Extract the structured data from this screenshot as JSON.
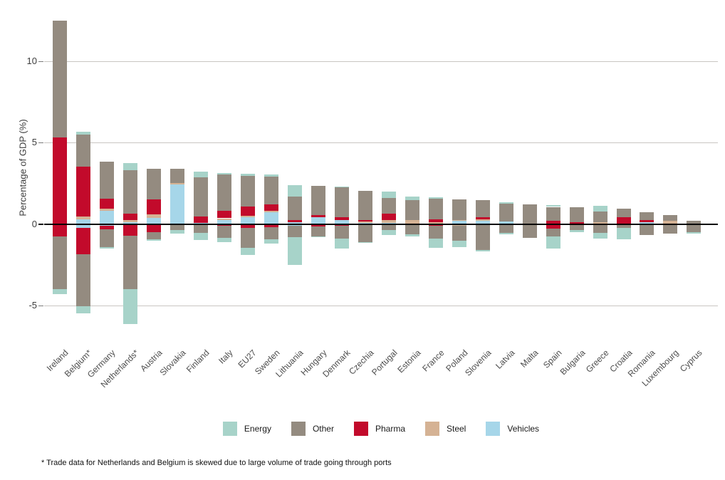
{
  "page": {
    "background": "#ffffff"
  },
  "chart_data": {
    "type": "bar",
    "stacked": true,
    "orientation": "vertical",
    "title": "",
    "xlabel": "",
    "ylabel": "Percentage of GDP (%)",
    "yticks": [
      10,
      5,
      0,
      -5
    ],
    "ylim": [
      -6.6,
      12.6
    ],
    "grid": "horizontal",
    "zero_line": true,
    "legend_position": "bottom",
    "negative_values_are_magnitudes": true,
    "stack_order_from_baseline": [
      "Vehicles",
      "Steel",
      "Pharma",
      "Other",
      "Energy"
    ],
    "categories": [
      "Ireland",
      "Belgium*",
      "Germany",
      "Netherlands*",
      "Austria",
      "Slovakia",
      "Finland",
      "Italy",
      "EU27",
      "Sweden",
      "Lithuania",
      "Hungary",
      "Denmark",
      "Czechia",
      "Portugal",
      "Estonia",
      "France",
      "Poland",
      "Slovenia",
      "Latvia",
      "Malta",
      "Spain",
      "Bulgaria",
      "Greece",
      "Croatia",
      "Romania",
      "Luxembourg",
      "Cyprus"
    ],
    "series": [
      {
        "name": "Energy",
        "color": "#a7d3c9",
        "positive": [
          0,
          0.19,
          0,
          0.44,
          0,
          0,
          0.32,
          0.07,
          0.13,
          0.12,
          0.69,
          0,
          0.05,
          0,
          0.4,
          0.22,
          0.1,
          0,
          0,
          0.09,
          0,
          0.12,
          0,
          0.35,
          0,
          0,
          0,
          0
        ],
        "negative": [
          0.34,
          0.44,
          0.1,
          2.16,
          0.06,
          0.19,
          0.44,
          0.26,
          0.44,
          0.29,
          1.69,
          0.07,
          0.61,
          0.05,
          0.32,
          0.11,
          0.58,
          0.39,
          0.1,
          0.11,
          0,
          0.73,
          0.11,
          0.34,
          0.69,
          0,
          0,
          0.08
        ]
      },
      {
        "name": "Other",
        "color": "#948b80",
        "positive": [
          7.2,
          1.96,
          2.26,
          2.7,
          1.89,
          0.91,
          2.44,
          2.22,
          1.88,
          1.74,
          1.48,
          1.8,
          1.84,
          1.77,
          0.96,
          1.25,
          1.27,
          1.23,
          1.04,
          1.11,
          1.22,
          0.85,
          0.91,
          0.66,
          0.54,
          0.5,
          0.35,
          0.21
        ],
        "negative": [
          3.23,
          3.22,
          1.07,
          3.27,
          0.44,
          0.39,
          0.55,
          0.75,
          1.19,
          0.71,
          0.7,
          0.59,
          0.79,
          1.11,
          0.38,
          0.65,
          0.81,
          0.9,
          1.6,
          0.54,
          0.85,
          0.49,
          0.39,
          0.55,
          0.26,
          0.66,
          0.55,
          0.5
        ]
      },
      {
        "name": "Pharma",
        "color": "#c20a2b",
        "positive": [
          5.3,
          3.08,
          0.65,
          0.4,
          0.94,
          0,
          0.37,
          0.48,
          0.57,
          0.36,
          0.11,
          0.1,
          0.18,
          0.11,
          0.39,
          0,
          0.18,
          0,
          0.14,
          0,
          0,
          0.2,
          0.11,
          0,
          0.4,
          0.13,
          0,
          0
        ],
        "negative": [
          0.76,
          1.59,
          0.21,
          0.72,
          0.51,
          0,
          0,
          0.1,
          0.26,
          0.21,
          0,
          0.17,
          0.1,
          0,
          0,
          0,
          0.09,
          0,
          0,
          0,
          0,
          0.29,
          0,
          0,
          0,
          0,
          0,
          0
        ]
      },
      {
        "name": "Steel",
        "color": "#d5b294",
        "positive": [
          0,
          0.14,
          0.09,
          0.09,
          0.22,
          0.05,
          0,
          0.09,
          0.07,
          0.09,
          0,
          0,
          0,
          0.06,
          0.19,
          0.23,
          0.07,
          0.07,
          0.1,
          0,
          0,
          0,
          0,
          0.11,
          0,
          0,
          0.2,
          0
        ],
        "negative": [
          0,
          0,
          0,
          0,
          0,
          0,
          0,
          0,
          0,
          0,
          0,
          0,
          0,
          0,
          0,
          0,
          0,
          0.12,
          0,
          0,
          0,
          0,
          0,
          0,
          0,
          0,
          0.05,
          0
        ]
      },
      {
        "name": "Vehicles",
        "color": "#a6d6e9",
        "positive": [
          0,
          0.3,
          0.83,
          0.13,
          0.36,
          2.45,
          0.07,
          0.26,
          0.43,
          0.74,
          0.11,
          0.43,
          0.22,
          0.08,
          0.06,
          0,
          0.04,
          0.19,
          0.19,
          0.14,
          0,
          0,
          0,
          0,
          0,
          0.1,
          0,
          0
        ],
        "negative": [
          0,
          0.25,
          0.13,
          0,
          0,
          0,
          0,
          0,
          0,
          0,
          0.13,
          0,
          0,
          0,
          0,
          0,
          0,
          0,
          0,
          0,
          0,
          0,
          0,
          0,
          0,
          0,
          0,
          0
        ]
      }
    ],
    "legend_items": [
      "Energy",
      "Other",
      "Pharma",
      "Steel",
      "Vehicles"
    ],
    "footnote": "* Trade data for Netherlands and Belgium is skewed due to large volume of trade going through ports"
  }
}
